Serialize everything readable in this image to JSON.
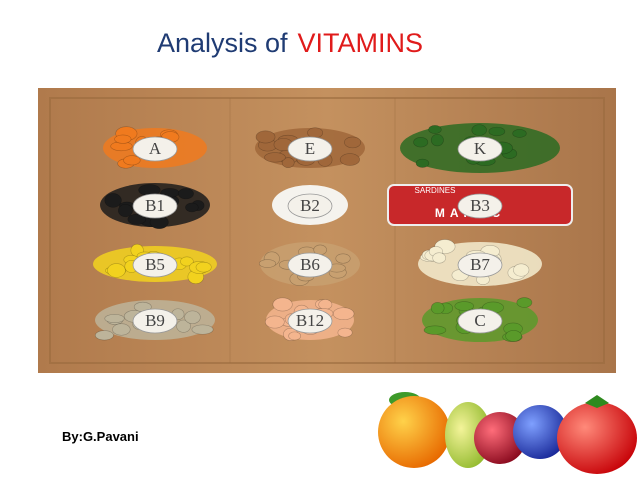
{
  "header": {
    "title_prefix": "Analysis of",
    "title_highlight": "VITAMINS"
  },
  "board": {
    "labels": [
      "A",
      "E",
      "K",
      "B1",
      "B2",
      "B3",
      "B5",
      "B6",
      "B7",
      "B9",
      "B12",
      "C"
    ],
    "can_text": [
      "SARDINES",
      "MAROC"
    ]
  },
  "footer": {
    "author": "By:G.Pavani"
  }
}
